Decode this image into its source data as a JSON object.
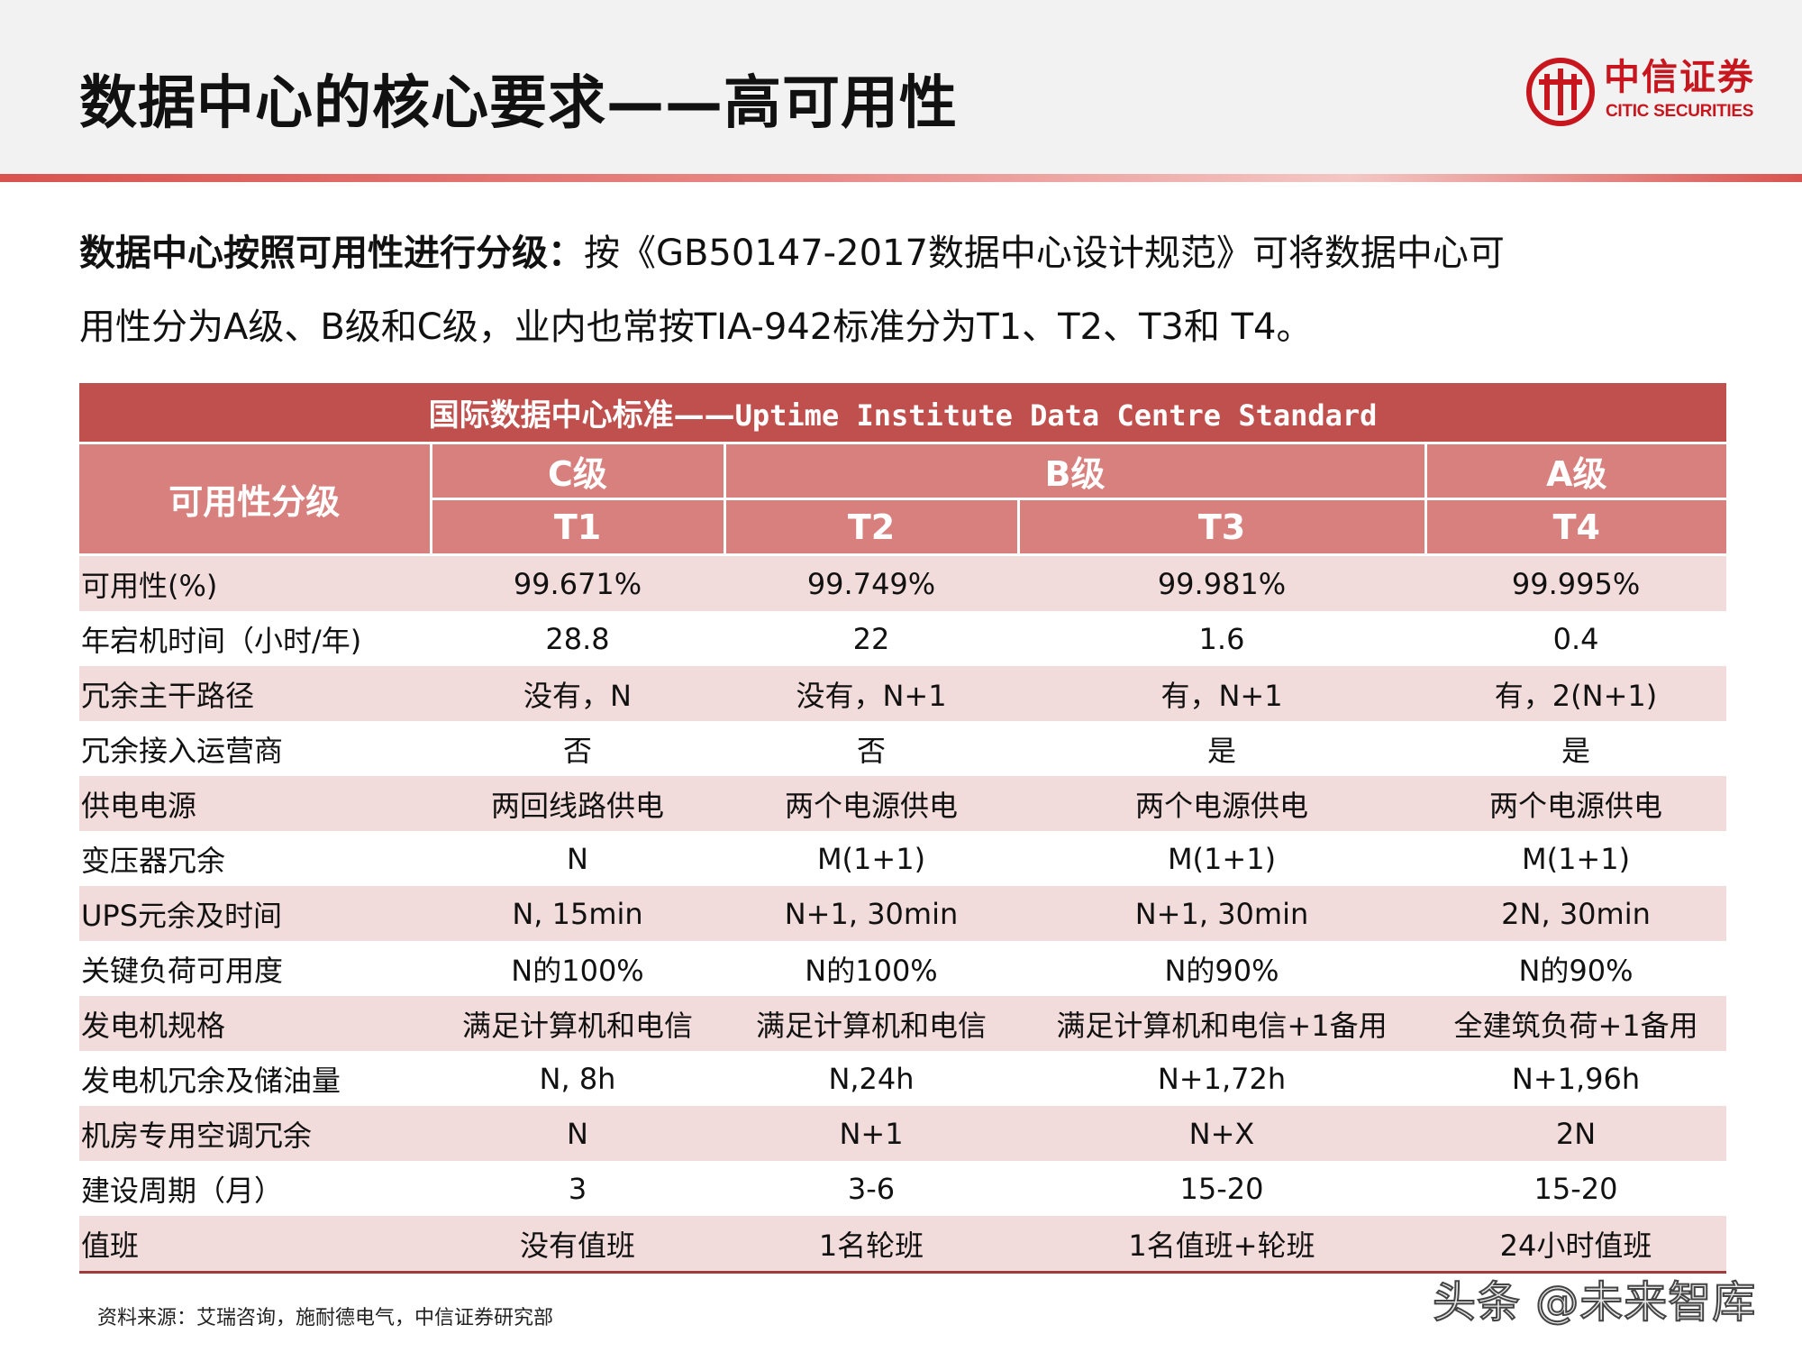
{
  "page": {
    "title": "数据中心的核心要求——高可用性"
  },
  "logo": {
    "cn": "中信证券",
    "en": "CITIC SECURITIES"
  },
  "intro": {
    "lead": "数据中心按照可用性进行分级：",
    "line1_rest": "按《GB50147-2017数据中心设计规范》可将数据中心可",
    "line2": "用性分为A级、B级和C级，业内也常按TIA-942标准分为T1、T2、T3和 T4。"
  },
  "table": {
    "title_cn": "国际数据中心标准——",
    "title_en": "Uptime Institute Data Centre Standard",
    "header": {
      "rowlabel": "可用性分级",
      "grades": [
        "C级",
        "B级",
        "A级"
      ],
      "tiers": [
        "T1",
        "T2",
        "T3",
        "T4"
      ]
    },
    "rows": [
      {
        "label": "可用性(%)",
        "t1": "99.671%",
        "t2": "99.749%",
        "t3": "99.981%",
        "t4": "99.995%"
      },
      {
        "label": "年宕机时间（小时/年)",
        "t1": "28.8",
        "t2": "22",
        "t3": "1.6",
        "t4": "0.4"
      },
      {
        "label": "冗余主干路径",
        "t1": "没有，N",
        "t2": "没有，N+1",
        "t3": "有，N+1",
        "t4": "有，2(N+1)"
      },
      {
        "label": "冗余接入运营商",
        "t1": "否",
        "t2": "否",
        "t3": "是",
        "t4": "是"
      },
      {
        "label": "供电电源",
        "t1": "两回线路供电",
        "t2": "两个电源供电",
        "t3": "两个电源供电",
        "t4": "两个电源供电"
      },
      {
        "label": "变压器冗余",
        "t1": "N",
        "t2": "M(1+1)",
        "t3": "M(1+1)",
        "t4": "M(1+1)"
      },
      {
        "label": "UPS元余及时间",
        "t1": "N, 15min",
        "t2": "N+1, 30min",
        "t3": "N+1, 30min",
        "t4": "2N, 30min"
      },
      {
        "label": "关键负荷可用度",
        "t1": "N的100%",
        "t2": "N的100%",
        "t3": "N的90%",
        "t4": "N的90%"
      },
      {
        "label": "发电机规格",
        "t1": "满足计算机和电信",
        "t2": "满足计算机和电信",
        "t3": "满足计算机和电信+1备用",
        "t4": "全建筑负荷+1备用"
      },
      {
        "label": "发电机冗余及储油量",
        "t1": "N, 8h",
        "t2": "N,24h",
        "t3": "N+1,72h",
        "t4": "N+1,96h"
      },
      {
        "label": "机房专用空调冗余",
        "t1": "N",
        "t2": "N+1",
        "t3": "N+X",
        "t4": "2N"
      },
      {
        "label": "建设周期（月）",
        "t1": "3",
        "t2": "3-6",
        "t3": "15-20",
        "t4": "15-20"
      },
      {
        "label": "值班",
        "t1": "没有值班",
        "t2": "1名轮班",
        "t3": "1名值班+轮班",
        "t4": "24小时值班"
      }
    ]
  },
  "source": "资料来源：艾瑞咨询，施耐德电气，中信证券研究部",
  "watermark": "头条 @未来智库",
  "colors": {
    "brand_red": "#c8161e",
    "table_title_bg": "#c0504d",
    "table_header_bg": "#d7807d",
    "row_stripe_bg": "#f2dcdb"
  }
}
